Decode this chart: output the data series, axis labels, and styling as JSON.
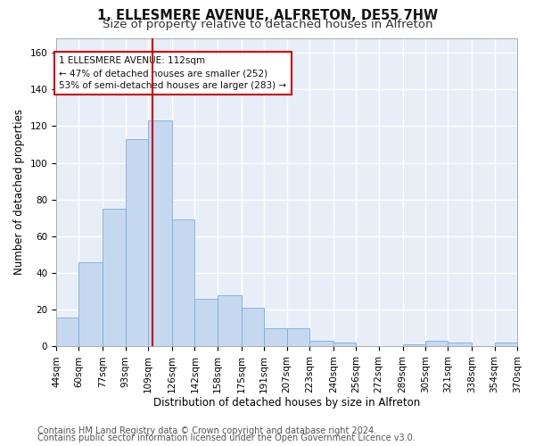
{
  "title_line1": "1, ELLESMERE AVENUE, ALFRETON, DE55 7HW",
  "title_line2": "Size of property relative to detached houses in Alfreton",
  "xlabel": "Distribution of detached houses by size in Alfreton",
  "ylabel": "Number of detached properties",
  "bar_color": "#c5d8f0",
  "bar_edge_color": "#7aafd4",
  "property_line_x": 112,
  "property_line_color": "#cc0000",
  "annotation_line1": "1 ELLESMERE AVENUE: 112sqm",
  "annotation_line2": "← 47% of detached houses are smaller (252)",
  "annotation_line3": "53% of semi-detached houses are larger (283) →",
  "annotation_box_color": "#cc0000",
  "bin_edges": [
    44,
    60,
    77,
    93,
    109,
    126,
    142,
    158,
    175,
    191,
    207,
    223,
    240,
    256,
    272,
    289,
    305,
    321,
    338,
    354,
    370
  ],
  "bar_heights": [
    16,
    46,
    75,
    113,
    123,
    69,
    26,
    28,
    21,
    10,
    10,
    3,
    2,
    0,
    0,
    1,
    3,
    2,
    0,
    2
  ],
  "ylim": [
    0,
    168
  ],
  "yticks": [
    0,
    20,
    40,
    60,
    80,
    100,
    120,
    140,
    160
  ],
  "footer_line1": "Contains HM Land Registry data © Crown copyright and database right 2024.",
  "footer_line2": "Contains public sector information licensed under the Open Government Licence v3.0.",
  "fig_background_color": "#ffffff",
  "axes_background": "#e8eef8",
  "grid_color": "#ffffff",
  "title_fontsize": 10.5,
  "subtitle_fontsize": 9.5,
  "axis_label_fontsize": 8.5,
  "tick_label_fontsize": 7.5,
  "footer_fontsize": 7.0,
  "annotation_fontsize": 7.5
}
